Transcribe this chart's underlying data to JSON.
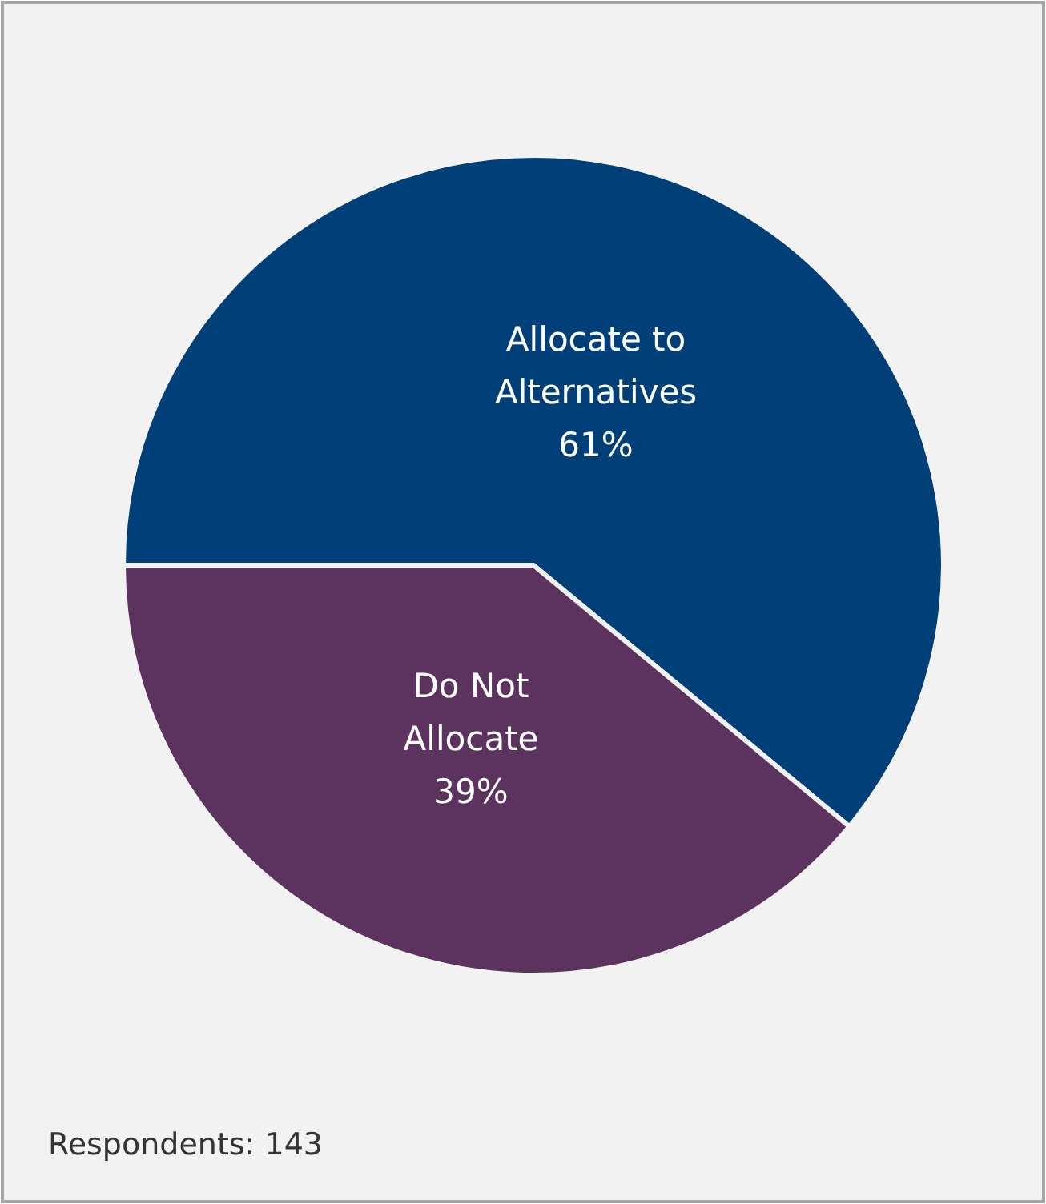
{
  "chart_data": {
    "type": "pie",
    "categories": [
      "Allocate to Alternatives",
      "Do Not Allocate"
    ],
    "values": [
      61,
      39
    ],
    "colors": [
      "#003f78",
      "#5c325e"
    ],
    "value_labels": [
      "61%",
      "39%"
    ],
    "legend": false,
    "annotations": [
      "Respondents: 143"
    ]
  }
}
